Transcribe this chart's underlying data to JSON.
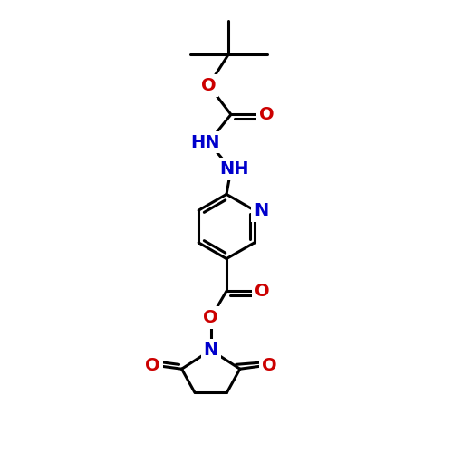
{
  "bg_color": "#ffffff",
  "atom_color_N": "#0000cc",
  "atom_color_O": "#cc0000",
  "bond_color": "#000000",
  "bond_width": 2.2,
  "font_size_atom": 14,
  "fig_width": 5.0,
  "fig_height": 5.0,
  "dpi": 100,
  "xlim": [
    0,
    10
  ],
  "ylim": [
    0,
    10
  ]
}
